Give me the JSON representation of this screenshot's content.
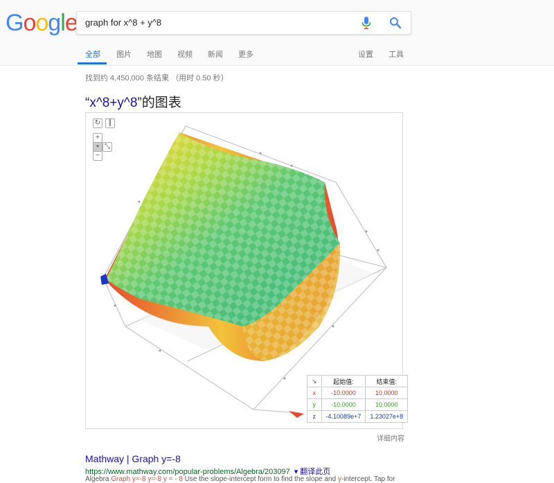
{
  "search": {
    "query": "graph for x^8 + y^8"
  },
  "tabs": [
    {
      "label": "全部"
    },
    {
      "label": "图片"
    },
    {
      "label": "地图"
    },
    {
      "label": "视频"
    },
    {
      "label": "新闻"
    },
    {
      "label": "更多"
    }
  ],
  "tools": {
    "settings": "设置",
    "tools": "工具"
  },
  "result_stats": "找到约 4,450,000 条结果 （用时 0.50 秒）",
  "graph": {
    "title_open": "“",
    "expression": "x^8+y^8",
    "title_close": "”的图表",
    "table": {
      "headers": [
        "↘",
        "起始值:",
        "结束值:"
      ],
      "rows": [
        {
          "axis": "x",
          "start": "-10.0000",
          "end": "10.0000"
        },
        {
          "axis": "y",
          "start": "-10.0000",
          "end": "10.0000"
        },
        {
          "axis": "z",
          "start": "-4.10089e+7",
          "end": "1.23027e+8"
        }
      ]
    },
    "more": "详细内容"
  },
  "results": [
    {
      "title": "Mathway | Graph y=-8",
      "url": "https://www.mathway.com/popular-problems/Algebra/203097",
      "translate": "▾ 翻译此页",
      "snippet_parts": [
        "Algebra ",
        "Graph y=-8",
        " ",
        "y=-8 y = - 8",
        " Use the slope-intercept form to find the slope and ",
        "y",
        "-intercept. Tap for"
      ]
    }
  ],
  "colors": {
    "accent": "#1a73e8",
    "link": "#1a0dab",
    "url": "#006621"
  }
}
